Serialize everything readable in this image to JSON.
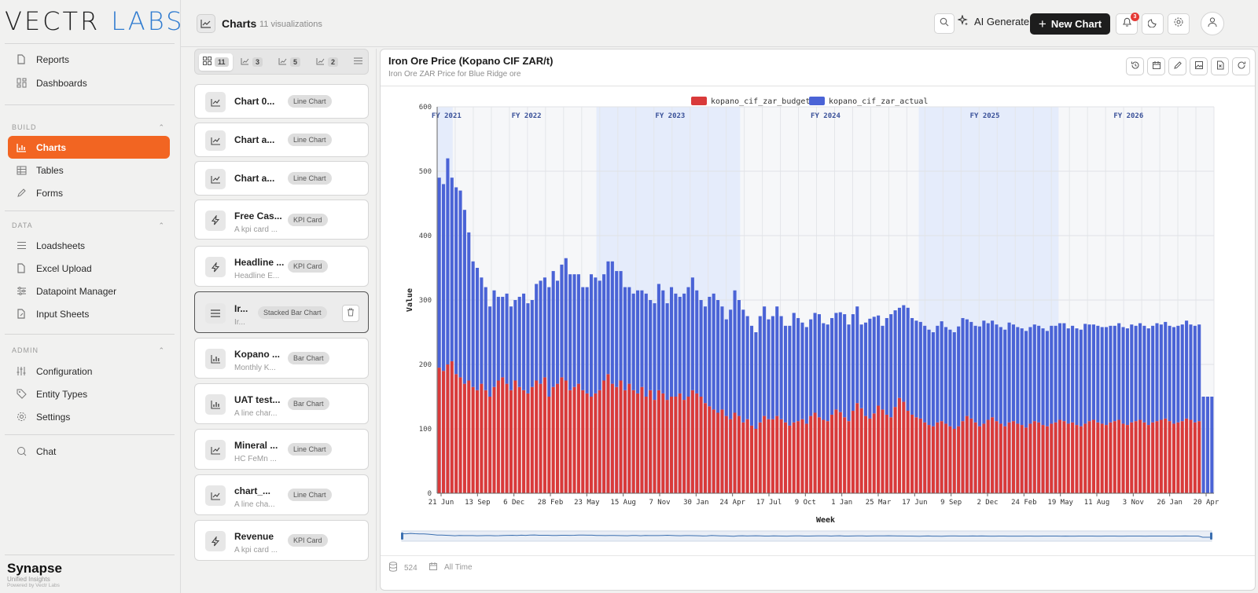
{
  "sidebar": {
    "logo_left": "VECTR",
    "logo_right": "LABS",
    "top_items": [
      {
        "label": "Reports",
        "icon": "file-icon"
      },
      {
        "label": "Dashboards",
        "icon": "grid-icon"
      }
    ],
    "sections": [
      {
        "title": "BUILD",
        "items": [
          {
            "label": "Charts",
            "icon": "bar-chart-icon",
            "active": true
          },
          {
            "label": "Tables",
            "icon": "table-icon"
          },
          {
            "label": "Forms",
            "icon": "pencil-icon"
          }
        ]
      },
      {
        "title": "DATA",
        "items": [
          {
            "label": "Loadsheets",
            "icon": "list-icon"
          },
          {
            "label": "Excel Upload",
            "icon": "file-icon"
          },
          {
            "label": "Datapoint Manager",
            "icon": "sliders-icon"
          },
          {
            "label": "Input Sheets",
            "icon": "file-edit-icon"
          }
        ]
      },
      {
        "title": "ADMIN",
        "items": [
          {
            "label": "Configuration",
            "icon": "sliders-vertical-icon"
          },
          {
            "label": "Entity Types",
            "icon": "tag-icon"
          },
          {
            "label": "Settings",
            "icon": "gear-icon"
          }
        ]
      }
    ],
    "chat_label": "Chat",
    "brand": {
      "title": "Synapse",
      "subtitle": "Unified Insights",
      "powered": "Powered by Vectr Labs"
    }
  },
  "header": {
    "title": "Charts",
    "count": "11 visualizations",
    "ai_label": "AI Generate",
    "new_label": "New Chart",
    "notif_count": "3"
  },
  "filters": [
    {
      "icon": "grid-icon",
      "count": "11",
      "active": true
    },
    {
      "icon": "line-chart-icon",
      "count": "3"
    },
    {
      "icon": "line-chart-icon",
      "count": "5"
    },
    {
      "icon": "line-chart-icon",
      "count": "2"
    }
  ],
  "charts_list": [
    {
      "name": "Chart 0...",
      "desc": "",
      "type": "Line Chart",
      "icon": "line-chart-icon"
    },
    {
      "name": "Chart a...",
      "desc": "",
      "type": "Line Chart",
      "icon": "line-chart-icon"
    },
    {
      "name": "Chart a...",
      "desc": "",
      "type": "Line Chart",
      "icon": "line-chart-icon"
    },
    {
      "name": "Free Cas...",
      "desc": "A kpi card ...",
      "type": "KPI Card",
      "icon": "lightning-icon"
    },
    {
      "name": "Headline ...",
      "desc": "Headline E...",
      "type": "KPI Card",
      "icon": "lightning-icon"
    },
    {
      "name": "Ir...",
      "desc": "Ir...",
      "type": "Stacked Bar Chart",
      "icon": "menu-icon",
      "selected": true
    },
    {
      "name": "Kopano ...",
      "desc": "Monthly K...",
      "type": "Bar Chart",
      "icon": "bar-chart-icon"
    },
    {
      "name": "UAT test...",
      "desc": "A line char...",
      "type": "Bar Chart",
      "icon": "bar-chart-icon"
    },
    {
      "name": "Mineral ...",
      "desc": "HC FeMn ...",
      "type": "Line Chart",
      "icon": "line-chart-icon"
    },
    {
      "name": "chart_...",
      "desc": "A line cha...",
      "type": "Line Chart",
      "icon": "line-chart-icon"
    },
    {
      "name": "Revenue",
      "desc": "A kpi card ...",
      "type": "KPI Card",
      "icon": "lightning-icon"
    }
  ],
  "main": {
    "title": "Iron Ore Price (Kopano CIF ZAR/t)",
    "subtitle": "Iron Ore ZAR Price for Blue Ridge ore",
    "footer_count": "524",
    "footer_range": "All Time"
  },
  "chart_data": {
    "type": "bar",
    "stacked": true,
    "xlabel": "Week",
    "ylabel": "Value",
    "ylim": [
      0,
      600
    ],
    "yticks": [
      0,
      100,
      200,
      300,
      400,
      500,
      600
    ],
    "legend_position": "top-center",
    "grid": true,
    "x_tick_labels": [
      "21 Jun",
      "13 Sep",
      "6 Dec",
      "28 Feb",
      "23 May",
      "15 Aug",
      "7 Nov",
      "30 Jan",
      "24 Apr",
      "17 Jul",
      "9 Oct",
      "1 Jan",
      "25 Mar",
      "17 Jun",
      "9 Sep",
      "2 Dec",
      "24 Feb",
      "19 May",
      "11 Aug",
      "3 Nov",
      "26 Jan",
      "20 Apr"
    ],
    "fiscal_years": [
      "FY 2021",
      "FY 2022",
      "FY 2023",
      "FY 2024",
      "FY 2025",
      "FY 2026"
    ],
    "series": [
      {
        "name": "kopano_cif_zar_budget",
        "color": "#d93a3a",
        "values": [
          195,
          190,
          200,
          205,
          185,
          180,
          170,
          175,
          165,
          160,
          170,
          160,
          150,
          165,
          175,
          180,
          170,
          160,
          175,
          165,
          160,
          155,
          165,
          175,
          170,
          180,
          150,
          165,
          170,
          180,
          175,
          160,
          165,
          170,
          160,
          155,
          150,
          155,
          160,
          175,
          185,
          170,
          165,
          175,
          160,
          170,
          160,
          155,
          165,
          150,
          160,
          145,
          160,
          155,
          145,
          150,
          150,
          155,
          145,
          150,
          160,
          155,
          150,
          140,
          135,
          130,
          125,
          130,
          120,
          115,
          125,
          120,
          110,
          115,
          105,
          100,
          110,
          120,
          115,
          115,
          120,
          115,
          110,
          105,
          110,
          112,
          115,
          108,
          120,
          125,
          118,
          114,
          112,
          122,
          130,
          126,
          118,
          112,
          128,
          140,
          132,
          120,
          116,
          124,
          136,
          130,
          122,
          118,
          134,
          148,
          142,
          128,
          122,
          118,
          116,
          110,
          106,
          104,
          110,
          112,
          108,
          104,
          100,
          104,
          112,
          120,
          116,
          110,
          104,
          108,
          114,
          118,
          112,
          108,
          104,
          110,
          112,
          108,
          106,
          102,
          108,
          112,
          110,
          106,
          104,
          108,
          110,
          114,
          112,
          108,
          110,
          106,
          104,
          108,
          112,
          114,
          110,
          108,
          106,
          110,
          112,
          114,
          108,
          106,
          110,
          112,
          114,
          110,
          106,
          110,
          112,
          114,
          116,
          112,
          108,
          110,
          112,
          116,
          114,
          110,
          112
        ]
      },
      {
        "name": "kopano_cif_zar_actual",
        "color": "#4a63d6",
        "values": [
          295,
          290,
          320,
          285,
          290,
          290,
          270,
          230,
          195,
          190,
          165,
          160,
          140,
          150,
          130,
          125,
          140,
          130,
          125,
          140,
          150,
          140,
          135,
          150,
          160,
          155,
          170,
          180,
          160,
          175,
          190,
          180,
          175,
          170,
          160,
          165,
          190,
          180,
          170,
          165,
          175,
          190,
          180,
          170,
          160,
          150,
          150,
          160,
          150,
          160,
          140,
          150,
          165,
          160,
          150,
          170,
          160,
          150,
          165,
          170,
          175,
          160,
          150,
          150,
          170,
          180,
          175,
          160,
          150,
          170,
          190,
          180,
          175,
          160,
          155,
          150,
          165,
          170,
          155,
          160,
          170,
          160,
          150,
          155,
          170,
          160,
          150,
          150,
          150,
          155,
          160,
          150,
          150,
          150,
          150,
          155,
          160,
          150,
          150,
          150,
          130,
          145,
          155,
          150,
          140,
          130,
          150,
          160,
          150,
          140,
          150,
          160,
          150,
          150,
          150,
          150,
          148,
          146,
          150,
          155,
          150,
          150,
          150,
          155,
          160,
          150,
          150,
          150,
          155,
          160,
          150,
          150,
          150,
          150,
          150,
          155,
          150,
          150,
          150,
          150,
          150,
          150,
          150,
          150,
          148,
          152,
          150,
          150,
          152,
          148,
          150,
          150,
          150,
          155,
          150,
          148,
          150,
          150,
          152,
          150,
          148,
          150,
          150,
          150,
          152,
          148,
          150,
          150,
          150,
          150,
          152,
          148,
          150,
          148,
          150,
          150,
          150,
          152,
          148,
          150,
          150,
          150,
          150,
          150
        ]
      }
    ]
  }
}
